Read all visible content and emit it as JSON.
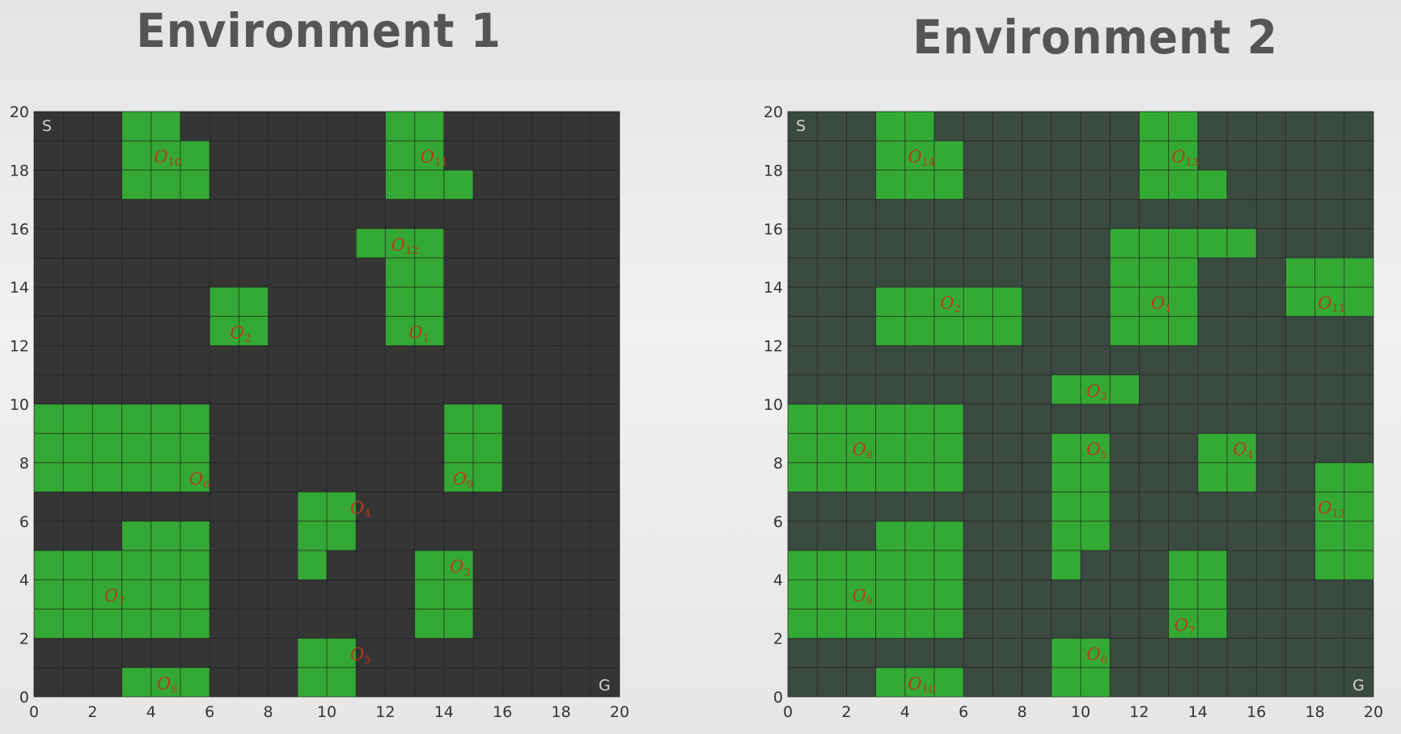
{
  "environments": [
    {
      "title": "Environment 1",
      "background": "#353535",
      "start_label": "S",
      "goal_label": "G",
      "axis": {
        "xlim": [
          0,
          20
        ],
        "ylim": [
          0,
          20
        ],
        "xticks": [
          0,
          2,
          4,
          6,
          8,
          10,
          12,
          14,
          16,
          18,
          20
        ],
        "yticks": [
          0,
          2,
          4,
          6,
          8,
          10,
          12,
          14,
          16,
          18,
          20
        ]
      },
      "obstacles": [
        {
          "label": "O",
          "sub": "1",
          "label_at": [
            12.8,
            12.2
          ],
          "cells": [
            [
              12,
              12,
              2,
              3
            ]
          ]
        },
        {
          "label": "O",
          "sub": "2",
          "label_at": [
            6.7,
            12.2
          ],
          "cells": [
            [
              6,
              12,
              2,
              2
            ]
          ]
        },
        {
          "label": "O",
          "sub": "3",
          "label_at": [
            14.2,
            4.2
          ],
          "cells": [
            [
              13,
              2,
              2,
              3
            ]
          ]
        },
        {
          "label": "O",
          "sub": "4",
          "label_at": [
            10.8,
            6.2
          ],
          "cells": [
            [
              9,
              5,
              2,
              2
            ],
            [
              9,
              4,
              1,
              1
            ]
          ]
        },
        {
          "label": "O",
          "sub": "5",
          "label_at": [
            10.8,
            1.2
          ],
          "cells": [
            [
              9,
              0,
              2,
              2
            ]
          ]
        },
        {
          "label": "O",
          "sub": "6",
          "label_at": [
            5.3,
            7.2
          ],
          "cells": [
            [
              0,
              7,
              6,
              3
            ]
          ]
        },
        {
          "label": "O",
          "sub": "7",
          "label_at": [
            2.4,
            3.2
          ],
          "cells": [
            [
              0,
              2,
              6,
              3
            ],
            [
              3,
              5,
              3,
              1
            ]
          ]
        },
        {
          "label": "O",
          "sub": "8",
          "label_at": [
            4.2,
            0.2
          ],
          "cells": [
            [
              3,
              0,
              3,
              1
            ]
          ]
        },
        {
          "label": "O",
          "sub": "9",
          "label_at": [
            14.3,
            7.2
          ],
          "cells": [
            [
              14,
              7,
              2,
              3
            ]
          ]
        },
        {
          "label": "O",
          "sub": "10",
          "label_at": [
            4.1,
            18.2
          ],
          "cells": [
            [
              3,
              17,
              3,
              2
            ],
            [
              3,
              19,
              2,
              1
            ]
          ]
        },
        {
          "label": "O",
          "sub": "11",
          "label_at": [
            13.2,
            18.2
          ],
          "cells": [
            [
              12,
              17,
              3,
              1
            ],
            [
              12,
              18,
              2,
              2
            ]
          ]
        },
        {
          "label": "O",
          "sub": "12",
          "label_at": [
            12.2,
            15.2
          ],
          "cells": [
            [
              11,
              15,
              3,
              1
            ]
          ]
        }
      ]
    },
    {
      "title": "Environment 2",
      "background": "#3b4a40",
      "start_label": "S",
      "goal_label": "G",
      "axis": {
        "xlim": [
          0,
          20
        ],
        "ylim": [
          0,
          20
        ],
        "xticks": [
          0,
          2,
          4,
          6,
          8,
          10,
          12,
          14,
          16,
          18,
          20
        ],
        "yticks": [
          0,
          2,
          4,
          6,
          8,
          10,
          12,
          14,
          16,
          18,
          20
        ]
      },
      "obstacles": [
        {
          "label": "O",
          "sub": "1",
          "label_at": [
            12.4,
            13.2
          ],
          "cells": [
            [
              11,
              15,
              5,
              1
            ],
            [
              11,
              12,
              3,
              3
            ]
          ]
        },
        {
          "label": "O",
          "sub": "2",
          "label_at": [
            5.2,
            13.2
          ],
          "cells": [
            [
              3,
              12,
              5,
              2
            ]
          ]
        },
        {
          "label": "O",
          "sub": "3",
          "label_at": [
            10.2,
            10.2
          ],
          "cells": [
            [
              9,
              10,
              3,
              1
            ]
          ]
        },
        {
          "label": "O",
          "sub": "4",
          "label_at": [
            15.2,
            8.2
          ],
          "cells": [
            [
              14,
              7,
              2,
              2
            ]
          ]
        },
        {
          "label": "O",
          "sub": "5",
          "label_at": [
            10.2,
            8.2
          ],
          "cells": [
            [
              9,
              5,
              2,
              4
            ],
            [
              9,
              4,
              1,
              1
            ]
          ]
        },
        {
          "label": "O",
          "sub": "6",
          "label_at": [
            10.2,
            1.2
          ],
          "cells": [
            [
              9,
              0,
              2,
              2
            ]
          ]
        },
        {
          "label": "O",
          "sub": "7",
          "label_at": [
            13.2,
            2.2
          ],
          "cells": [
            [
              13,
              2,
              2,
              3
            ]
          ]
        },
        {
          "label": "O",
          "sub": "8",
          "label_at": [
            2.2,
            8.2
          ],
          "cells": [
            [
              0,
              7,
              6,
              3
            ]
          ]
        },
        {
          "label": "O",
          "sub": "9",
          "label_at": [
            2.2,
            3.2
          ],
          "cells": [
            [
              0,
              2,
              6,
              3
            ],
            [
              3,
              5,
              3,
              1
            ]
          ]
        },
        {
          "label": "O",
          "sub": "10",
          "label_at": [
            4.1,
            0.2
          ],
          "cells": [
            [
              3,
              0,
              3,
              1
            ]
          ]
        },
        {
          "label": "O",
          "sub": "11",
          "label_at": [
            18.1,
            13.2
          ],
          "cells": [
            [
              17,
              13,
              3,
              2
            ]
          ]
        },
        {
          "label": "O",
          "sub": "12",
          "label_at": [
            18.1,
            6.2
          ],
          "cells": [
            [
              18,
              4,
              2,
              4
            ]
          ]
        },
        {
          "label": "O",
          "sub": "13",
          "label_at": [
            13.1,
            18.2
          ],
          "cells": [
            [
              12,
              17,
              3,
              1
            ],
            [
              12,
              18,
              2,
              2
            ]
          ]
        },
        {
          "label": "O",
          "sub": "14",
          "label_at": [
            4.1,
            18.2
          ],
          "cells": [
            [
              3,
              17,
              3,
              2
            ],
            [
              3,
              19,
              2,
              1
            ]
          ]
        }
      ]
    }
  ]
}
